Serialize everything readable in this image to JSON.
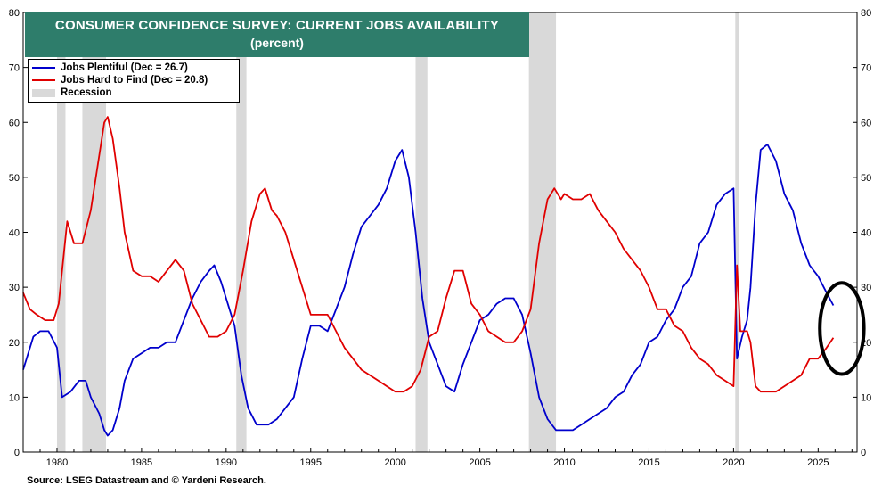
{
  "chart_data": {
    "type": "line",
    "title": "CONSUMER CONFIDENCE SURVEY: CURRENT JOBS AVAILABILITY",
    "subtitle": "(percent)",
    "xlim": [
      1978,
      2027.3
    ],
    "ylim": [
      0,
      80
    ],
    "x_ticks": [
      1980,
      1985,
      1990,
      1995,
      2000,
      2005,
      2010,
      2015,
      2020,
      2025
    ],
    "y_ticks": [
      0,
      10,
      20,
      30,
      40,
      50,
      60,
      70,
      80
    ],
    "grid": false,
    "legend_position": "top-left",
    "recessions": [
      [
        1980.0,
        1980.5
      ],
      [
        1981.5,
        1982.9
      ],
      [
        1990.6,
        1991.2
      ],
      [
        2001.2,
        2001.9
      ],
      [
        2007.9,
        2009.5
      ],
      [
        2020.1,
        2020.3
      ]
    ],
    "series": [
      {
        "name": "Jobs Plentiful (Dec = 26.7)",
        "color": "#0000cc",
        "points": [
          [
            1978.0,
            15
          ],
          [
            1978.3,
            18
          ],
          [
            1978.6,
            21
          ],
          [
            1979.0,
            22
          ],
          [
            1979.5,
            22
          ],
          [
            1980.0,
            19
          ],
          [
            1980.3,
            10
          ],
          [
            1980.8,
            11
          ],
          [
            1981.3,
            13
          ],
          [
            1981.7,
            13
          ],
          [
            1982.0,
            10
          ],
          [
            1982.5,
            7
          ],
          [
            1982.8,
            4
          ],
          [
            1983.0,
            3
          ],
          [
            1983.3,
            4
          ],
          [
            1983.7,
            8
          ],
          [
            1984.0,
            13
          ],
          [
            1984.5,
            17
          ],
          [
            1985.0,
            18
          ],
          [
            1985.5,
            19
          ],
          [
            1986.0,
            19
          ],
          [
            1986.5,
            20
          ],
          [
            1987.0,
            20
          ],
          [
            1987.5,
            24
          ],
          [
            1988.0,
            28
          ],
          [
            1988.5,
            31
          ],
          [
            1989.0,
            33
          ],
          [
            1989.3,
            34
          ],
          [
            1989.7,
            31
          ],
          [
            1990.0,
            28
          ],
          [
            1990.5,
            23
          ],
          [
            1990.9,
            14
          ],
          [
            1991.3,
            8
          ],
          [
            1991.8,
            5
          ],
          [
            1992.5,
            5
          ],
          [
            1993.0,
            6
          ],
          [
            1993.5,
            8
          ],
          [
            1994.0,
            10
          ],
          [
            1994.5,
            17
          ],
          [
            1995.0,
            23
          ],
          [
            1995.5,
            23
          ],
          [
            1996.0,
            22
          ],
          [
            1996.5,
            26
          ],
          [
            1997.0,
            30
          ],
          [
            1997.5,
            36
          ],
          [
            1998.0,
            41
          ],
          [
            1998.5,
            43
          ],
          [
            1999.0,
            45
          ],
          [
            1999.5,
            48
          ],
          [
            2000.0,
            53
          ],
          [
            2000.4,
            55
          ],
          [
            2000.8,
            50
          ],
          [
            2001.2,
            40
          ],
          [
            2001.6,
            28
          ],
          [
            2002.0,
            20
          ],
          [
            2002.5,
            16
          ],
          [
            2003.0,
            12
          ],
          [
            2003.5,
            11
          ],
          [
            2004.0,
            16
          ],
          [
            2004.5,
            20
          ],
          [
            2005.0,
            24
          ],
          [
            2005.5,
            25
          ],
          [
            2006.0,
            27
          ],
          [
            2006.5,
            28
          ],
          [
            2007.0,
            28
          ],
          [
            2007.5,
            25
          ],
          [
            2008.0,
            18
          ],
          [
            2008.5,
            10
          ],
          [
            2009.0,
            6
          ],
          [
            2009.5,
            4
          ],
          [
            2010.0,
            4
          ],
          [
            2010.5,
            4
          ],
          [
            2011.0,
            5
          ],
          [
            2011.5,
            6
          ],
          [
            2012.0,
            7
          ],
          [
            2012.5,
            8
          ],
          [
            2013.0,
            10
          ],
          [
            2013.5,
            11
          ],
          [
            2014.0,
            14
          ],
          [
            2014.5,
            16
          ],
          [
            2015.0,
            20
          ],
          [
            2015.5,
            21
          ],
          [
            2016.0,
            24
          ],
          [
            2016.5,
            26
          ],
          [
            2017.0,
            30
          ],
          [
            2017.5,
            32
          ],
          [
            2018.0,
            38
          ],
          [
            2018.5,
            40
          ],
          [
            2019.0,
            45
          ],
          [
            2019.5,
            47
          ],
          [
            2020.0,
            48
          ],
          [
            2020.2,
            17
          ],
          [
            2020.5,
            21
          ],
          [
            2020.8,
            24
          ],
          [
            2021.0,
            30
          ],
          [
            2021.3,
            45
          ],
          [
            2021.6,
            55
          ],
          [
            2022.0,
            56
          ],
          [
            2022.5,
            53
          ],
          [
            2023.0,
            47
          ],
          [
            2023.5,
            44
          ],
          [
            2024.0,
            38
          ],
          [
            2024.5,
            34
          ],
          [
            2025.0,
            32
          ],
          [
            2025.5,
            29
          ],
          [
            2025.9,
            26.7
          ]
        ]
      },
      {
        "name": "Jobs Hard to Find (Dec = 20.8)",
        "color": "#e00000",
        "points": [
          [
            1978.0,
            29
          ],
          [
            1978.4,
            26
          ],
          [
            1978.8,
            25
          ],
          [
            1979.3,
            24
          ],
          [
            1979.8,
            24
          ],
          [
            1980.1,
            27
          ],
          [
            1980.4,
            36
          ],
          [
            1980.6,
            42
          ],
          [
            1981.0,
            38
          ],
          [
            1981.5,
            38
          ],
          [
            1982.0,
            44
          ],
          [
            1982.4,
            52
          ],
          [
            1982.8,
            60
          ],
          [
            1983.0,
            61
          ],
          [
            1983.3,
            57
          ],
          [
            1983.7,
            48
          ],
          [
            1984.0,
            40
          ],
          [
            1984.5,
            33
          ],
          [
            1985.0,
            32
          ],
          [
            1985.5,
            32
          ],
          [
            1986.0,
            31
          ],
          [
            1986.5,
            33
          ],
          [
            1987.0,
            35
          ],
          [
            1987.5,
            33
          ],
          [
            1988.0,
            27
          ],
          [
            1988.5,
            24
          ],
          [
            1989.0,
            21
          ],
          [
            1989.5,
            21
          ],
          [
            1990.0,
            22
          ],
          [
            1990.5,
            25
          ],
          [
            1991.0,
            33
          ],
          [
            1991.5,
            42
          ],
          [
            1992.0,
            47
          ],
          [
            1992.3,
            48
          ],
          [
            1992.7,
            44
          ],
          [
            1993.0,
            43
          ],
          [
            1993.5,
            40
          ],
          [
            1994.0,
            35
          ],
          [
            1994.5,
            30
          ],
          [
            1995.0,
            25
          ],
          [
            1995.5,
            25
          ],
          [
            1996.0,
            25
          ],
          [
            1996.5,
            22
          ],
          [
            1997.0,
            19
          ],
          [
            1997.5,
            17
          ],
          [
            1998.0,
            15
          ],
          [
            1998.5,
            14
          ],
          [
            1999.0,
            13
          ],
          [
            1999.5,
            12
          ],
          [
            2000.0,
            11
          ],
          [
            2000.5,
            11
          ],
          [
            2001.0,
            12
          ],
          [
            2001.5,
            15
          ],
          [
            2002.0,
            21
          ],
          [
            2002.5,
            22
          ],
          [
            2003.0,
            28
          ],
          [
            2003.5,
            33
          ],
          [
            2004.0,
            33
          ],
          [
            2004.5,
            27
          ],
          [
            2005.0,
            25
          ],
          [
            2005.5,
            22
          ],
          [
            2006.0,
            21
          ],
          [
            2006.5,
            20
          ],
          [
            2007.0,
            20
          ],
          [
            2007.5,
            22
          ],
          [
            2008.0,
            26
          ],
          [
            2008.5,
            38
          ],
          [
            2009.0,
            46
          ],
          [
            2009.4,
            48
          ],
          [
            2009.8,
            46
          ],
          [
            2010.0,
            47
          ],
          [
            2010.5,
            46
          ],
          [
            2011.0,
            46
          ],
          [
            2011.5,
            47
          ],
          [
            2012.0,
            44
          ],
          [
            2012.5,
            42
          ],
          [
            2013.0,
            40
          ],
          [
            2013.5,
            37
          ],
          [
            2014.0,
            35
          ],
          [
            2014.5,
            33
          ],
          [
            2015.0,
            30
          ],
          [
            2015.5,
            26
          ],
          [
            2016.0,
            26
          ],
          [
            2016.5,
            23
          ],
          [
            2017.0,
            22
          ],
          [
            2017.5,
            19
          ],
          [
            2018.0,
            17
          ],
          [
            2018.5,
            16
          ],
          [
            2019.0,
            14
          ],
          [
            2019.5,
            13
          ],
          [
            2020.0,
            12
          ],
          [
            2020.2,
            34
          ],
          [
            2020.4,
            22
          ],
          [
            2020.8,
            22
          ],
          [
            2021.0,
            20
          ],
          [
            2021.3,
            12
          ],
          [
            2021.6,
            11
          ],
          [
            2022.0,
            11
          ],
          [
            2022.5,
            11
          ],
          [
            2023.0,
            12
          ],
          [
            2023.5,
            13
          ],
          [
            2024.0,
            14
          ],
          [
            2024.5,
            17
          ],
          [
            2025.0,
            17
          ],
          [
            2025.5,
            19
          ],
          [
            2025.9,
            20.8
          ]
        ]
      }
    ],
    "legend": [
      {
        "label": "Jobs Plentiful (Dec = 26.7)",
        "color": "#0000cc",
        "type": "line"
      },
      {
        "label": "Jobs Hard to Find (Dec = 20.8)",
        "color": "#e00000",
        "type": "line"
      },
      {
        "label": "Recession",
        "color": "#d9d9d9",
        "type": "band"
      }
    ],
    "annotation": {
      "type": "ellipse",
      "note": "circled latest readings",
      "center_x": 2026.4,
      "center_y": 22.5,
      "radius_x": 1.3,
      "radius_y": 8.3
    }
  },
  "source": "Source: LSEG Datastream and © Yardeni Research."
}
